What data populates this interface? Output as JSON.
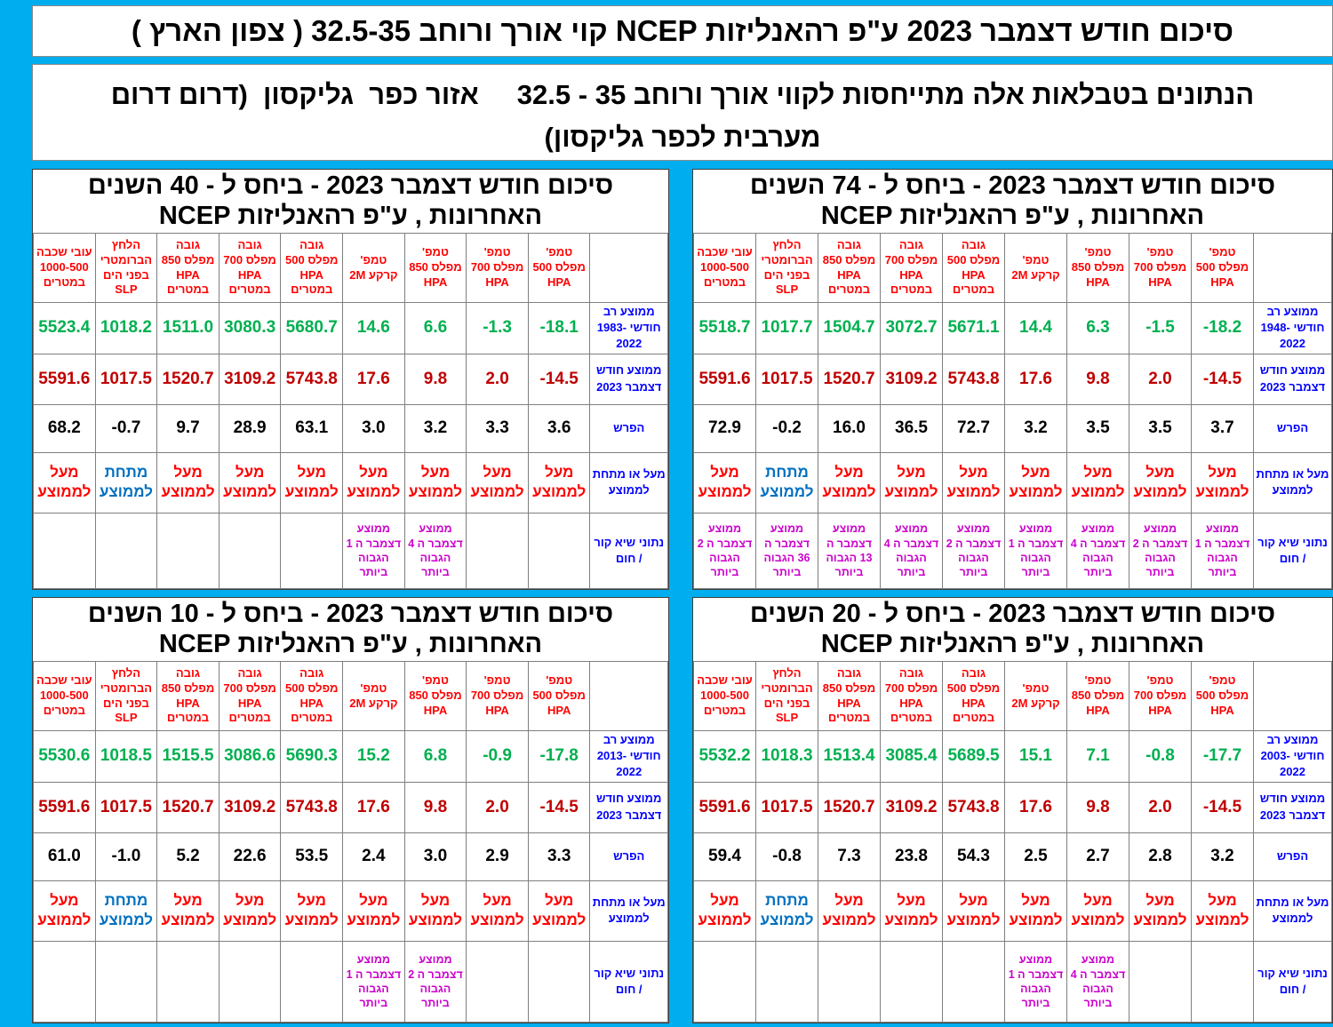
{
  "page": {
    "title": "סיכום חודש דצמבר 2023 ע\"פ רהאנליזות NCEP קוי אורך ורוחב 32.5-35 ( צפון הארץ )",
    "subtitle": "הנתונים בטבלאות אלה מתייחסות לקווי אורך ורוחב 35 - 32.5     אזור כפר  גליקסון  (דרום דרום מערבית לכפר גליקסון)"
  },
  "colors": {
    "background_cyan": "#00aeef",
    "header_red": "#ff0000",
    "avg_green": "#00b050",
    "dec2023_red": "#c00000",
    "label_blue": "#0000ff",
    "below_avg_blue": "#0070c0",
    "record_magenta": "#cc00cc"
  },
  "headers": [
    "עובי שכבה 1000-500 במטרים",
    "הלחץ הברומטרי בפני הים SLP",
    "גובה מפלס 850 HPA במטרים",
    "גובה מפלס 700 HPA במטרים",
    "גובה מפלס 500 HPA במטרים",
    "טמפ' קרקע 2M",
    "טמפ' מפלס 850 HPA",
    "טמפ' מפלס 700 HPA",
    "טמפ' מפלס 500 HPA"
  ],
  "corner_label": "",
  "tables": [
    {
      "id": "vs-40-years",
      "title": "סיכום חודש דצמבר  2023  - ביחס ל - 40 השנים האחרונות , ע\"פ רהאנליזות NCEP",
      "rows": [
        {
          "key": "avg",
          "label": "ממוצע רב חודשי 1983-2022",
          "cells": [
            "5523.4",
            "1018.2",
            "1511.0",
            "3080.3",
            "5680.7",
            "14.6",
            "6.6",
            "-1.3",
            "-18.1"
          ]
        },
        {
          "key": "dec",
          "label": "ממוצע חודש דצמבר 2023",
          "cells": [
            "5591.6",
            "1017.5",
            "1520.7",
            "3109.2",
            "5743.8",
            "17.6",
            "9.8",
            "2.0",
            "-14.5"
          ]
        },
        {
          "key": "diff",
          "label": "הפרש",
          "cells": [
            "68.2",
            "-0.7",
            "9.7",
            "28.9",
            "63.1",
            "3.0",
            "3.2",
            "3.3",
            "3.6"
          ]
        },
        {
          "key": "above",
          "label": "מעל או מתחת לממוצע",
          "cells": [
            "מעל לממוצע",
            "מתחת לממוצע",
            "מעל לממוצע",
            "מעל לממוצע",
            "מעל לממוצע",
            "מעל לממוצע",
            "מעל לממוצע",
            "מעל לממוצע",
            "מעל לממוצע"
          ]
        },
        {
          "key": "records",
          "label": "נתוני שיא קור / חום",
          "cells": [
            "",
            "",
            "",
            "",
            "",
            "ממוצע דצמבר ה 1 הגבוה ביותר",
            "ממוצע דצמבר ה 4 הגבוה ביותר",
            "",
            ""
          ]
        }
      ]
    },
    {
      "id": "vs-74-years",
      "title": "סיכום חודש דצמבר  2023  - ביחס ל - 74 השנים האחרונות , ע\"פ רהאנליזות NCEP",
      "rows": [
        {
          "key": "avg",
          "label": "ממוצע רב חודשי 1948-2022",
          "cells": [
            "5518.7",
            "1017.7",
            "1504.7",
            "3072.7",
            "5671.1",
            "14.4",
            "6.3",
            "-1.5",
            "-18.2"
          ]
        },
        {
          "key": "dec",
          "label": "ממוצע חודש דצמבר 2023",
          "cells": [
            "5591.6",
            "1017.5",
            "1520.7",
            "3109.2",
            "5743.8",
            "17.6",
            "9.8",
            "2.0",
            "-14.5"
          ]
        },
        {
          "key": "diff",
          "label": "הפרש",
          "cells": [
            "72.9",
            "-0.2",
            "16.0",
            "36.5",
            "72.7",
            "3.2",
            "3.5",
            "3.5",
            "3.7"
          ]
        },
        {
          "key": "above",
          "label": "מעל או מתחת לממוצע",
          "cells": [
            "מעל לממוצע",
            "מתחת לממוצע",
            "מעל לממוצע",
            "מעל לממוצע",
            "מעל לממוצע",
            "מעל לממוצע",
            "מעל לממוצע",
            "מעל לממוצע",
            "מעל לממוצע"
          ]
        },
        {
          "key": "records",
          "label": "נתוני שיא קור / חום",
          "cells": [
            "ממוצע דצמבר ה 2 הגבוה ביותר",
            "ממוצע דצמבר ה 36 הגבוה ביותר",
            "ממוצע דצמבר ה 13 הגבוה ביותר",
            "ממוצע דצמבר ה 4 הגבוה ביותר",
            "ממוצע דצמבר ה 2 הגבוה ביותר",
            "ממוצע דצמבר ה 1 הגבוה ביותר",
            "ממוצע דצמבר ה 4 הגבוה ביותר",
            "ממוצע דצמבר ה 2 הגבוה ביותר",
            "ממוצע דצמבר ה 1 הגבוה ביותר"
          ]
        }
      ]
    },
    {
      "id": "vs-10-years",
      "title": "סיכום חודש דצמבר  2023  - ביחס ל - 10 השנים האחרונות , ע\"פ רהאנליזות NCEP",
      "rows": [
        {
          "key": "avg",
          "label": "ממוצע רב חודשי 2013-2022",
          "cells": [
            "5530.6",
            "1018.5",
            "1515.5",
            "3086.6",
            "5690.3",
            "15.2",
            "6.8",
            "-0.9",
            "-17.8"
          ]
        },
        {
          "key": "dec",
          "label": "ממוצע חודש דצמבר 2023",
          "cells": [
            "5591.6",
            "1017.5",
            "1520.7",
            "3109.2",
            "5743.8",
            "17.6",
            "9.8",
            "2.0",
            "-14.5"
          ]
        },
        {
          "key": "diff",
          "label": "הפרש",
          "cells": [
            "61.0",
            "-1.0",
            "5.2",
            "22.6",
            "53.5",
            "2.4",
            "3.0",
            "2.9",
            "3.3"
          ]
        },
        {
          "key": "above",
          "label": "מעל או מתחת לממוצע",
          "cells": [
            "מעל לממוצע",
            "מתחת לממוצע",
            "מעל לממוצע",
            "מעל לממוצע",
            "מעל לממוצע",
            "מעל לממוצע",
            "מעל לממוצע",
            "מעל לממוצע",
            "מעל לממוצע"
          ]
        },
        {
          "key": "records",
          "label": "נתוני שיא קור / חום",
          "cells": [
            "",
            "",
            "",
            "",
            "",
            "ממוצע דצמבר ה 1 הגבוה ביותר",
            "ממוצע דצמבר ה 2 הגבוה ביותר",
            "",
            ""
          ]
        }
      ]
    },
    {
      "id": "vs-20-years",
      "title": "סיכום חודש דצמבר  2023  - ביחס ל - 20 השנים האחרונות , ע\"פ רהאנליזות NCEP",
      "rows": [
        {
          "key": "avg",
          "label": "ממוצע רב חודשי 2003-2022",
          "cells": [
            "5532.2",
            "1018.3",
            "1513.4",
            "3085.4",
            "5689.5",
            "15.1",
            "7.1",
            "-0.8",
            "-17.7"
          ]
        },
        {
          "key": "dec",
          "label": "ממוצע חודש דצמבר 2023",
          "cells": [
            "5591.6",
            "1017.5",
            "1520.7",
            "3109.2",
            "5743.8",
            "17.6",
            "9.8",
            "2.0",
            "-14.5"
          ]
        },
        {
          "key": "diff",
          "label": "הפרש",
          "cells": [
            "59.4",
            "-0.8",
            "7.3",
            "23.8",
            "54.3",
            "2.5",
            "2.7",
            "2.8",
            "3.2"
          ]
        },
        {
          "key": "above",
          "label": "מעל או מתחת לממוצע",
          "cells": [
            "מעל לממוצע",
            "מתחת לממוצע",
            "מעל לממוצע",
            "מעל לממוצע",
            "מעל לממוצע",
            "מעל לממוצע",
            "מעל לממוצע",
            "מעל לממוצע",
            "מעל לממוצע"
          ]
        },
        {
          "key": "records",
          "label": "נתוני שיא קור / חום",
          "cells": [
            "",
            "",
            "",
            "",
            "",
            "ממוצע דצמבר ה 1 הגבוה ביותר",
            "ממוצע דצמבר ה 4 הגבוה ביותר",
            "",
            ""
          ]
        }
      ]
    }
  ]
}
